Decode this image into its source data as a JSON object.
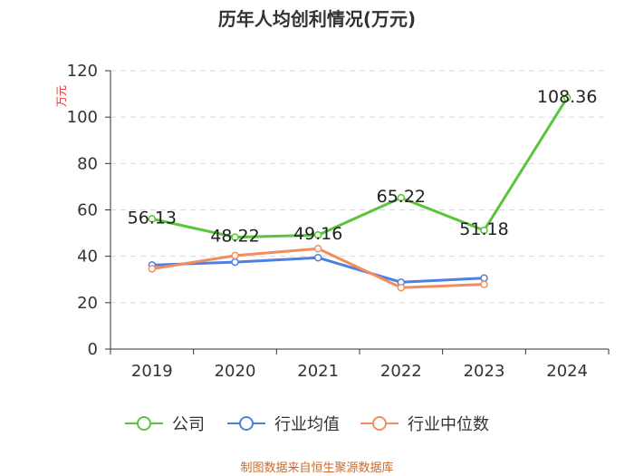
{
  "title": "历年人均创利情况(万元)",
  "source": "制图数据来自恒生聚源数据库",
  "colors": {
    "company": "#5ac53a",
    "industry_avg": "#4f7fe0",
    "industry_median": "#f48c5e",
    "grid": "#d9d9d9",
    "axis": "#333333"
  },
  "chart_data": {
    "type": "line",
    "title": "历年人均创利情况(万元)",
    "ylabel": "万元",
    "xlabel": "",
    "categories": [
      "2019",
      "2020",
      "2021",
      "2022",
      "2023",
      "2024"
    ],
    "ylim": [
      0,
      120
    ],
    "yticks": [
      0,
      20,
      40,
      60,
      80,
      100,
      120
    ],
    "grid": true,
    "legend_position": "bottom",
    "series": [
      {
        "name": "公司",
        "key": "company",
        "values": [
          56.13,
          48.22,
          49.16,
          65.22,
          51.18,
          108.36
        ],
        "labels": [
          "56.13",
          "48.22",
          "49.16",
          "65.22",
          "51.18",
          "108.36"
        ]
      },
      {
        "name": "行业均值",
        "key": "industry_avg",
        "values": [
          36.2,
          37.5,
          39.4,
          28.8,
          30.6,
          null
        ]
      },
      {
        "name": "行业中位数",
        "key": "industry_median",
        "values": [
          34.6,
          40.3,
          43.3,
          26.5,
          27.9,
          null
        ]
      }
    ]
  }
}
